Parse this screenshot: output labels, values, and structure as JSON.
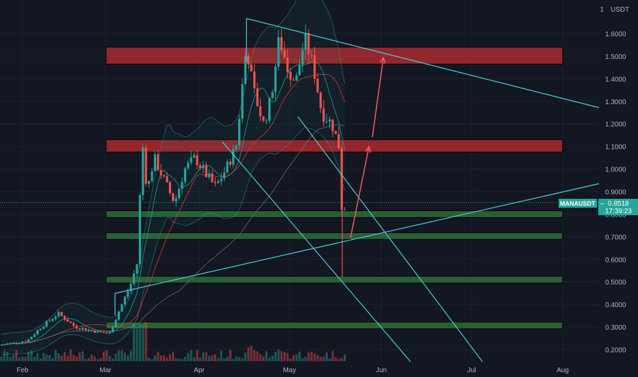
{
  "chart_data": {
    "type": "candlestick",
    "title": "",
    "currency_label": "USDT",
    "x_ticks": [
      "Feb",
      "Mar",
      "Apr",
      "May",
      "Jun",
      "Jul",
      "Aug"
    ],
    "y_ticks": [
      "1.6000",
      "1.5000",
      "1.4000",
      "1.3000",
      "1.2000",
      "1.1000",
      "1.0000",
      "0.9000",
      "0.8000",
      "0.7000",
      "0.6000",
      "0.5000",
      "0.4000",
      "0.3000",
      "0.2000"
    ],
    "y_tick_values": [
      1.6,
      1.5,
      1.4,
      1.3,
      1.2,
      1.1,
      1.0,
      0.9,
      0.8,
      0.7,
      0.6,
      0.5,
      0.4,
      0.3,
      0.2
    ],
    "ylim": [
      0.16,
      1.72
    ],
    "top_scale_label": "1",
    "price_label": {
      "symbol": "MANAUSDT",
      "value": "0.8518",
      "countdown": "17:39:23",
      "price": 0.8518
    },
    "resistance_zones": [
      {
        "low": 1.465,
        "high": 1.54
      },
      {
        "low": 1.075,
        "high": 1.13
      }
    ],
    "support_zones": [
      {
        "low": 0.785,
        "high": 0.815
      },
      {
        "low": 0.688,
        "high": 0.718
      },
      {
        "low": 0.495,
        "high": 0.525
      },
      {
        "low": 0.292,
        "high": 0.322
      }
    ],
    "colors": {
      "background": "#131722",
      "up": "#26a69a",
      "down": "#ef5350",
      "trendline": "#4dd0e1",
      "arrow": "#f05a5a",
      "resistance_zone": "#a82a2f",
      "support_zone": "#2e6b3a",
      "ma_fast": "#26a69a",
      "ma_mid": "#e53935",
      "ma_slow": "#6b6f7a"
    }
  }
}
